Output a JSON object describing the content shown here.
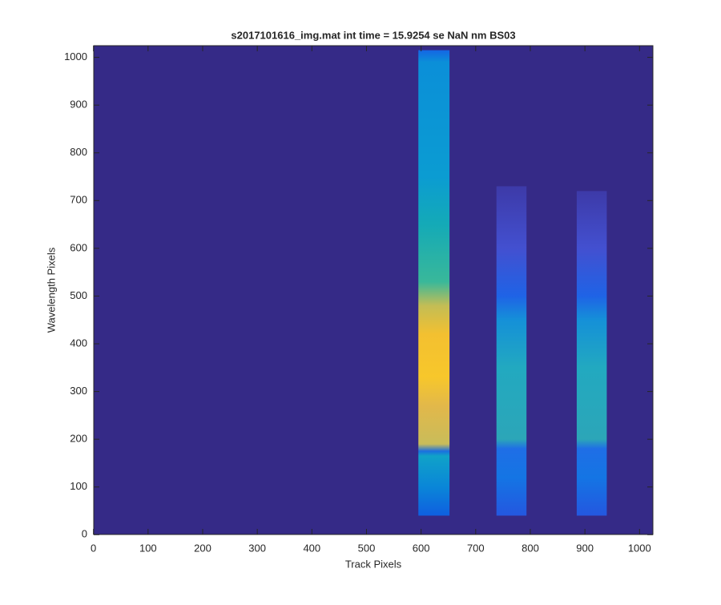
{
  "chart_data": {
    "type": "image",
    "title": "s2017101616_img.mat int time = 15.9254 se  NaN nm BS03",
    "x_label": "Track Pixels",
    "y_label": "Wavelength Pixels",
    "xlim": [
      0.5,
      1024.5
    ],
    "ylim": [
      0.5,
      1024.5
    ],
    "xticks": [
      0,
      100,
      200,
      300,
      400,
      500,
      600,
      700,
      800,
      900,
      1000
    ],
    "yticks": [
      0,
      100,
      200,
      300,
      400,
      500,
      600,
      700,
      800,
      900,
      1000
    ],
    "background": "#352a87",
    "bands": [
      {
        "x": [
          595,
          652
        ],
        "y": [
          40,
          1015
        ],
        "stops": [
          {
            "y": 40,
            "color": "#0f5fe0"
          },
          {
            "y": 100,
            "color": "#0a86d8"
          },
          {
            "y": 165,
            "color": "#10a2c8"
          },
          {
            "y": 175,
            "color": "#1a6fe0"
          },
          {
            "y": 190,
            "color": "#c9bc5a"
          },
          {
            "y": 270,
            "color": "#e2b84a"
          },
          {
            "y": 330,
            "color": "#f7c72b"
          },
          {
            "y": 420,
            "color": "#f3c030"
          },
          {
            "y": 480,
            "color": "#c3bd55"
          },
          {
            "y": 530,
            "color": "#39b89a"
          },
          {
            "y": 650,
            "color": "#14aab7"
          },
          {
            "y": 750,
            "color": "#0b9cd2"
          },
          {
            "y": 990,
            "color": "#0b8fd8"
          },
          {
            "y": 1015,
            "color": "#1466e4"
          }
        ]
      },
      {
        "x": [
          738,
          793
        ],
        "y": [
          40,
          730
        ],
        "stops": [
          {
            "y": 40,
            "color": "#2457e0"
          },
          {
            "y": 120,
            "color": "#1475e4"
          },
          {
            "y": 180,
            "color": "#1f6ee6"
          },
          {
            "y": 200,
            "color": "#2ca6b8"
          },
          {
            "y": 350,
            "color": "#22a9c0"
          },
          {
            "y": 450,
            "color": "#1590d8"
          },
          {
            "y": 500,
            "color": "#1f63e6"
          },
          {
            "y": 600,
            "color": "#4350d0"
          },
          {
            "y": 730,
            "color": "#3d3aa8"
          }
        ]
      },
      {
        "x": [
          885,
          940
        ],
        "y": [
          40,
          720
        ],
        "stops": [
          {
            "y": 40,
            "color": "#2457e0"
          },
          {
            "y": 120,
            "color": "#1475e4"
          },
          {
            "y": 180,
            "color": "#1f6ee6"
          },
          {
            "y": 200,
            "color": "#2ca6b8"
          },
          {
            "y": 350,
            "color": "#22a9c0"
          },
          {
            "y": 450,
            "color": "#1590d8"
          },
          {
            "y": 500,
            "color": "#1f63e6"
          },
          {
            "y": 600,
            "color": "#4350d0"
          },
          {
            "y": 720,
            "color": "#3d3aa8"
          }
        ]
      }
    ]
  }
}
